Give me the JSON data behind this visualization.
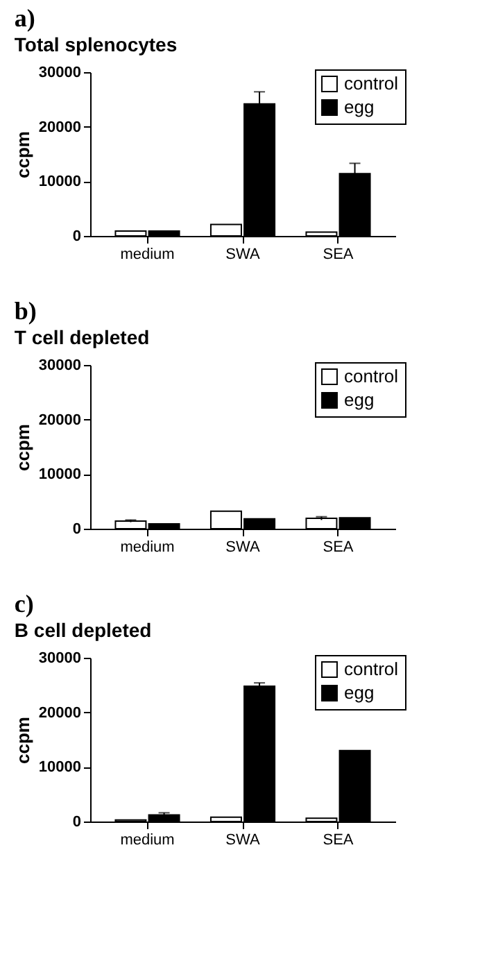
{
  "chart_data": [
    {
      "type": "bar",
      "title": "a)",
      "subtitle": "Total splenocytes",
      "ylabel": "ccpm",
      "categories": [
        "medium",
        "SWA",
        "SEA"
      ],
      "ylim": [
        0,
        30000
      ],
      "yticks": [
        0,
        10000,
        20000,
        30000
      ],
      "grid": false,
      "legend": "top right",
      "series": [
        {
          "name": "control",
          "color": "#ffffff",
          "values": [
            900,
            2100,
            700
          ],
          "errors": [
            null,
            null,
            null
          ]
        },
        {
          "name": "egg",
          "color": "#000000",
          "values": [
            900,
            24200,
            11400
          ],
          "errors": [
            null,
            2200,
            1900
          ]
        }
      ]
    },
    {
      "type": "bar",
      "title": "b)",
      "subtitle": "T cell depleted",
      "ylabel": "ccpm",
      "categories": [
        "medium",
        "SWA",
        "SEA"
      ],
      "ylim": [
        0,
        30000
      ],
      "yticks": [
        0,
        10000,
        20000,
        30000
      ],
      "grid": false,
      "legend": "top right",
      "series": [
        {
          "name": "control",
          "color": "#ffffff",
          "values": [
            1400,
            3200,
            1900
          ],
          "errors": [
            200,
            null,
            300
          ]
        },
        {
          "name": "egg",
          "color": "#000000",
          "values": [
            900,
            1800,
            2000
          ],
          "errors": [
            null,
            null,
            null
          ]
        }
      ]
    },
    {
      "type": "bar",
      "title": "c)",
      "subtitle": "B cell depleted",
      "ylabel": "ccpm",
      "categories": [
        "medium",
        "SWA",
        "SEA"
      ],
      "ylim": [
        0,
        30000
      ],
      "yticks": [
        0,
        10000,
        20000,
        30000
      ],
      "grid": false,
      "legend": "top right",
      "series": [
        {
          "name": "control",
          "color": "#ffffff",
          "values": [
            300,
            800,
            600
          ],
          "errors": [
            null,
            null,
            null
          ]
        },
        {
          "name": "egg",
          "color": "#000000",
          "values": [
            1200,
            24800,
            13000
          ],
          "errors": [
            400,
            600,
            null
          ]
        }
      ]
    }
  ]
}
